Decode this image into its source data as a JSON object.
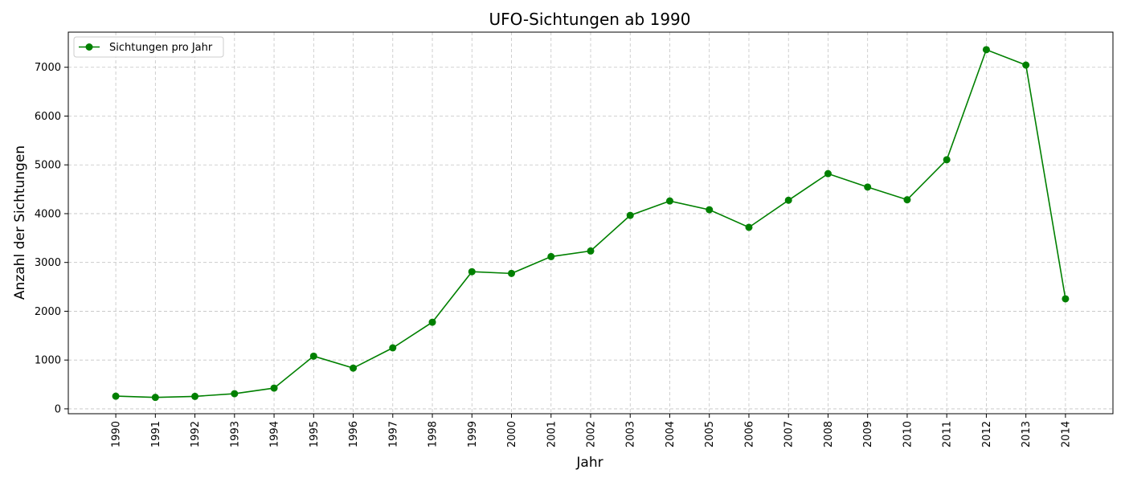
{
  "chart_data": {
    "type": "line",
    "title": "UFO-Sichtungen ab 1990",
    "xlabel": "Jahr",
    "ylabel": "Anzahl der Sichtungen",
    "x": [
      1990,
      1991,
      1992,
      1993,
      1994,
      1995,
      1996,
      1997,
      1998,
      1999,
      2000,
      2001,
      2002,
      2003,
      2004,
      2005,
      2006,
      2007,
      2008,
      2009,
      2010,
      2011,
      2012,
      2013,
      2014
    ],
    "series": [
      {
        "name": "Sichtungen pro Jahr",
        "color": "#008000",
        "marker": "circle",
        "values": [
          260,
          235,
          255,
          310,
          425,
          1080,
          835,
          1250,
          1775,
          2810,
          2775,
          3120,
          3235,
          3965,
          4260,
          4080,
          3720,
          4275,
          4820,
          4545,
          4285,
          5105,
          7360,
          7045,
          2255
        ]
      }
    ],
    "xlim": [
      1988.8,
      2015.2
    ],
    "ylim": [
      -100,
      7720
    ],
    "yticks": [
      0,
      1000,
      2000,
      3000,
      4000,
      5000,
      6000,
      7000
    ],
    "grid": true,
    "legend_position": "top-left"
  }
}
